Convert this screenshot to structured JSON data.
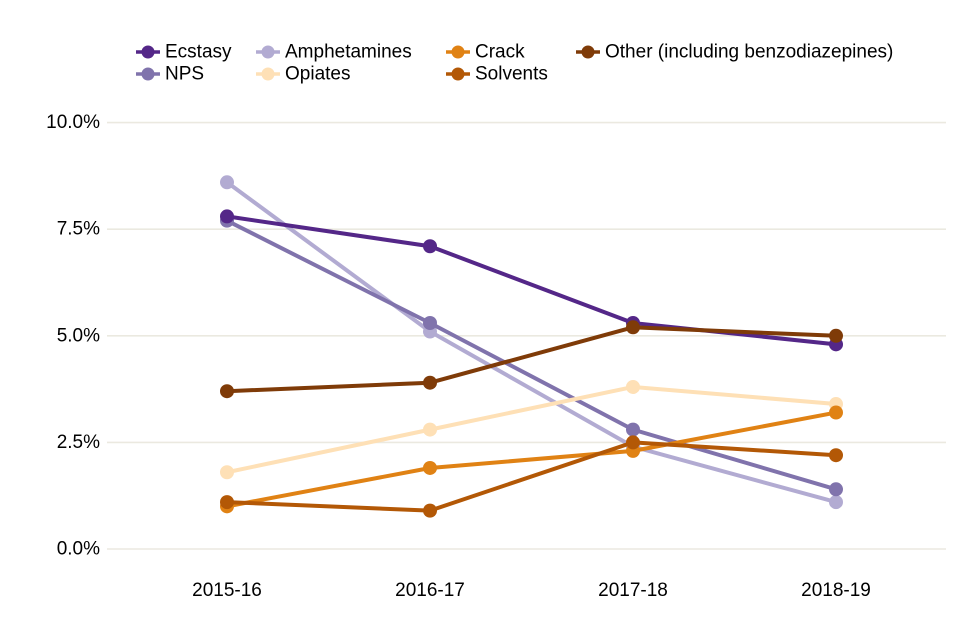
{
  "chart_data": {
    "type": "line",
    "title": "",
    "xlabel": "",
    "ylabel": "",
    "x": [
      "2015-16",
      "2016-17",
      "2017-18",
      "2018-19"
    ],
    "series": [
      {
        "name": "Ecstasy",
        "color": "#542788",
        "values": [
          7.8,
          7.1,
          5.3,
          4.8
        ]
      },
      {
        "name": "NPS",
        "color": "#8073ac",
        "values": [
          7.7,
          5.3,
          2.8,
          1.4
        ]
      },
      {
        "name": "Amphetamines",
        "color": "#b2abd2",
        "values": [
          8.6,
          5.1,
          2.4,
          1.1
        ]
      },
      {
        "name": "Opiates",
        "color": "#fee0b6",
        "values": [
          1.8,
          2.8,
          3.8,
          3.4
        ]
      },
      {
        "name": "Crack",
        "color": "#e08214",
        "values": [
          1.0,
          1.9,
          2.3,
          3.2
        ]
      },
      {
        "name": "Solvents",
        "color": "#b35806",
        "values": [
          1.1,
          0.9,
          2.5,
          2.2
        ]
      },
      {
        "name": "Other (including benzodiazepines)",
        "color": "#7f3b08",
        "values": [
          3.7,
          3.9,
          5.2,
          5.0
        ]
      }
    ],
    "ylim": [
      0,
      10
    ],
    "yticks": [
      {
        "value": 0,
        "label": "0.0%"
      },
      {
        "value": 2.5,
        "label": "2.5%"
      },
      {
        "value": 5,
        "label": "5.0%"
      },
      {
        "value": 7.5,
        "label": "7.5%"
      },
      {
        "value": 10,
        "label": "10.0%"
      }
    ],
    "grid": true,
    "legend_position": "top",
    "colors": {
      "background": "#ffffff",
      "gridline": "#ebe9e0",
      "text": "#000000"
    }
  }
}
